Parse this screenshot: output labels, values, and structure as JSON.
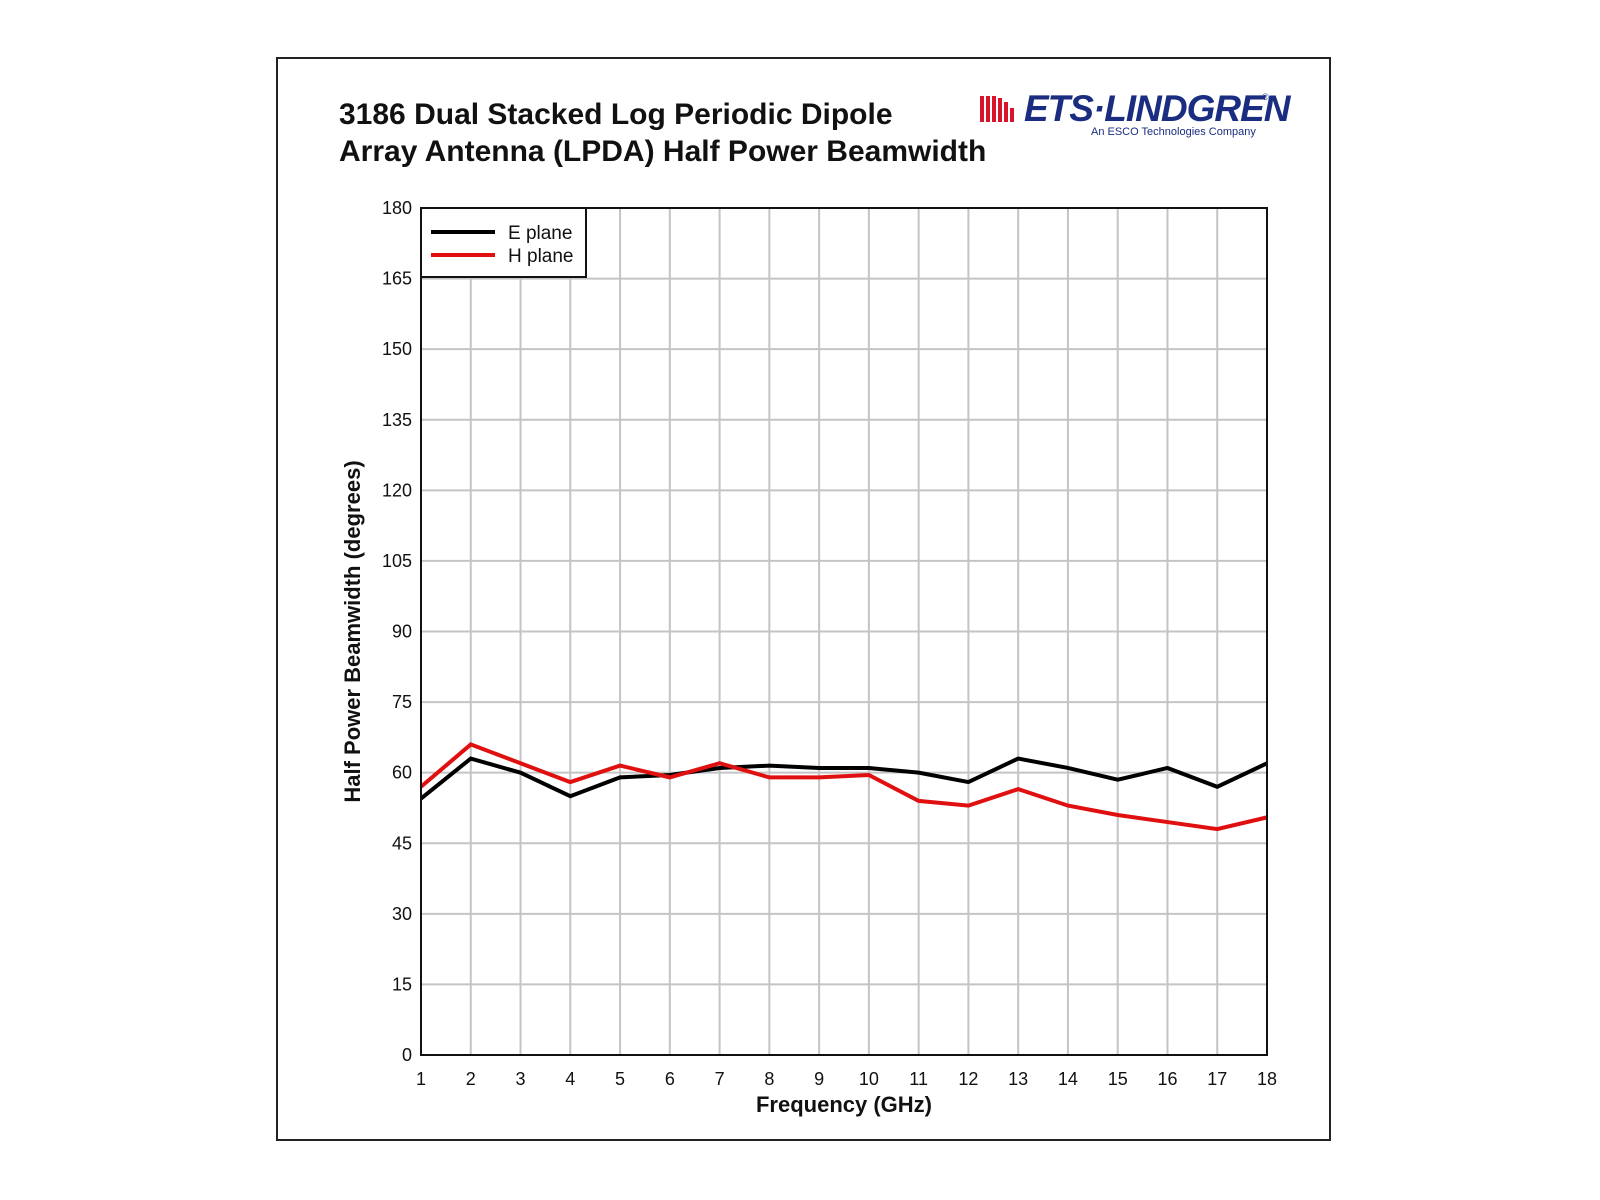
{
  "title": {
    "line1": "3186 Dual Stacked Log Periodic Dipole",
    "line2": "Array Antenna (LPDA) Half Power Beamwidth"
  },
  "logo": {
    "name": "ETS·LINDGREN",
    "registered": "®",
    "tagline": "An ESCO Technologies Company",
    "color": "#1a2d80",
    "wave_color": "#d8132a"
  },
  "chart_data": {
    "type": "line",
    "xlabel": "Frequency (GHz)",
    "ylabel": "Half Power Beamwidth (degrees)",
    "xlim": [
      1,
      18
    ],
    "ylim": [
      0,
      180
    ],
    "xticks": [
      1,
      2,
      3,
      4,
      5,
      6,
      7,
      8,
      9,
      10,
      11,
      12,
      13,
      14,
      15,
      16,
      17,
      18
    ],
    "yticks": [
      0,
      15,
      30,
      45,
      60,
      75,
      90,
      105,
      120,
      135,
      150,
      165,
      180
    ],
    "grid": true,
    "legend_position": "top-left",
    "x": [
      1,
      2,
      3,
      4,
      5,
      6,
      7,
      8,
      9,
      10,
      11,
      12,
      13,
      14,
      15,
      16,
      17,
      18
    ],
    "series": [
      {
        "name": "E plane",
        "color": "#000000",
        "values": [
          54.5,
          63,
          60,
          55,
          59,
          59.5,
          61,
          61.5,
          61,
          61,
          60,
          58,
          63,
          61,
          58.5,
          61,
          57,
          62
        ]
      },
      {
        "name": "H plane",
        "color": "#e01010",
        "values": [
          57,
          66,
          62,
          58,
          61.5,
          59,
          62,
          59,
          59,
          59.5,
          54,
          53,
          56.5,
          53,
          51,
          49.5,
          48,
          50.5
        ]
      }
    ]
  }
}
